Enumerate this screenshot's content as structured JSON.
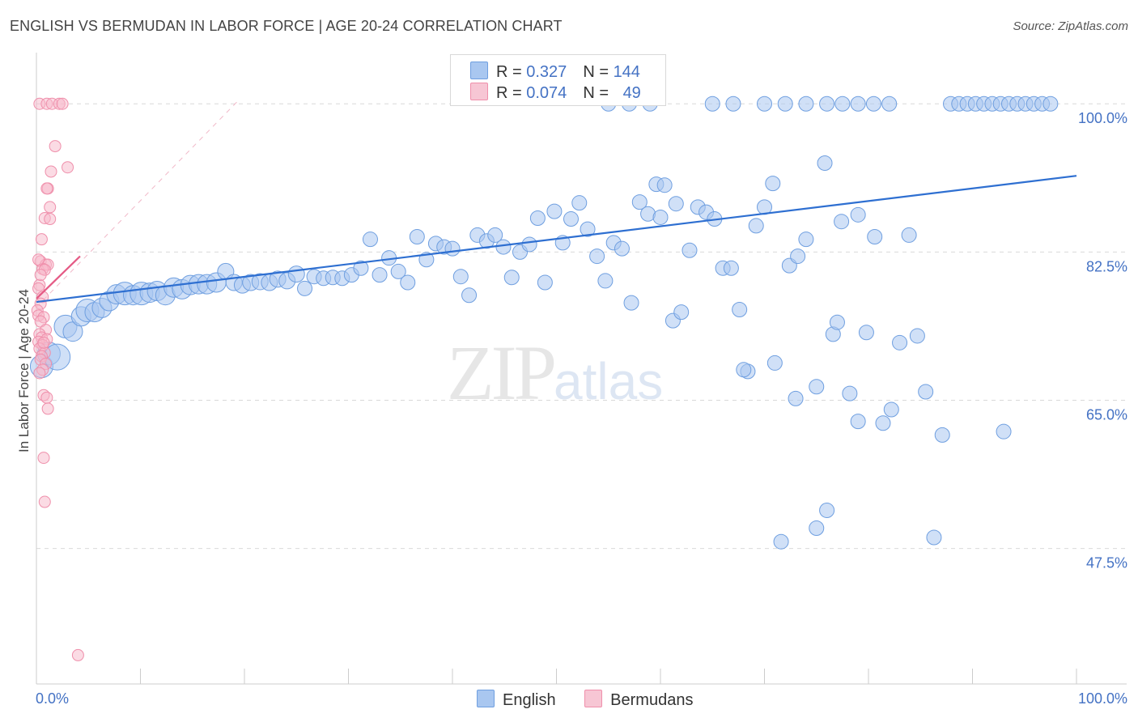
{
  "title": "ENGLISH VS BERMUDAN IN LABOR FORCE | AGE 20-24 CORRELATION CHART",
  "source": "Source: ZipAtlas.com",
  "watermark": {
    "zip": "ZIP",
    "atlas": "atlas"
  },
  "legend": {
    "rows": [
      {
        "r_label": "R = ",
        "r_value": "0.327",
        "n_label": "N = ",
        "n_value": "144"
      },
      {
        "r_label": "R = ",
        "r_value": "0.074",
        "n_label": "N = ",
        "n_value": "49"
      }
    ]
  },
  "bottom_legend": {
    "english": "English",
    "bermudans": "Bermudans"
  },
  "colors": {
    "english_fill": "#a9c7f0",
    "english_stroke": "#6f9fe0",
    "english_line": "#2e6fd1",
    "bermudan_fill": "#f7b8ca",
    "bermudan_stroke": "#ef8fab",
    "bermudan_line": "#e55a85",
    "axis_text": "#4472c4",
    "grid": "#d9d9d9"
  },
  "chart_data": {
    "type": "scatter",
    "title": "ENGLISH VS BERMUDAN IN LABOR FORCE | AGE 20-24 CORRELATION CHART",
    "xlabel": "",
    "ylabel": "In Labor Force | Age 20-24",
    "xlim": [
      0,
      100
    ],
    "ylim": [
      31.5,
      107
    ],
    "x_tick_labels": {
      "left": "0.0%",
      "right": "100.0%"
    },
    "y_ticks": [
      {
        "value": 100.0,
        "label": "100.0%"
      },
      {
        "value": 82.5,
        "label": "82.5%"
      },
      {
        "value": 65.0,
        "label": "65.0%"
      },
      {
        "value": 47.5,
        "label": "47.5%"
      }
    ],
    "series": [
      {
        "name": "English",
        "r": 0.327,
        "n": 144,
        "trend": {
          "x0": 0,
          "y0": 76.6,
          "x1": 100,
          "y1": 91.5
        },
        "points": [
          [
            0.5,
            69.0,
            14
          ],
          [
            1.2,
            70.5,
            14
          ],
          [
            2.0,
            70.1,
            16
          ],
          [
            2.8,
            73.7,
            14
          ],
          [
            3.5,
            73.1,
            12
          ],
          [
            4.3,
            74.9,
            12
          ],
          [
            4.9,
            75.6,
            14
          ],
          [
            5.6,
            75.4,
            12
          ],
          [
            6.3,
            75.9,
            12
          ],
          [
            7.0,
            76.7,
            12
          ],
          [
            7.7,
            77.5,
            12
          ],
          [
            8.5,
            77.6,
            14
          ],
          [
            9.3,
            77.4,
            12
          ],
          [
            10.1,
            77.6,
            14
          ],
          [
            10.9,
            77.7,
            12
          ],
          [
            11.6,
            77.9,
            12
          ],
          [
            12.4,
            77.4,
            12
          ],
          [
            13.2,
            78.3,
            12
          ],
          [
            14.0,
            78.1,
            12
          ],
          [
            14.8,
            78.6,
            12
          ],
          [
            15.6,
            78.7,
            12
          ],
          [
            16.4,
            78.7,
            12
          ],
          [
            17.3,
            78.9,
            12
          ],
          [
            18.2,
            80.2,
            10
          ],
          [
            19.0,
            78.9,
            10
          ],
          [
            19.8,
            78.6,
            10
          ],
          [
            20.6,
            78.9,
            10
          ],
          [
            21.5,
            79.0,
            10
          ],
          [
            22.4,
            78.9,
            10
          ],
          [
            23.2,
            79.3,
            10
          ],
          [
            24.1,
            79.1,
            10
          ],
          [
            25.0,
            79.9,
            10
          ],
          [
            25.8,
            78.2,
            9
          ],
          [
            26.7,
            79.6,
            9
          ],
          [
            27.6,
            79.4,
            9
          ],
          [
            28.5,
            79.5,
            9
          ],
          [
            29.4,
            79.4,
            9
          ],
          [
            30.3,
            79.8,
            9
          ],
          [
            31.2,
            80.6,
            9
          ],
          [
            32.1,
            84.0,
            9
          ],
          [
            33.0,
            79.8,
            9
          ],
          [
            33.9,
            81.8,
            9
          ],
          [
            34.8,
            80.2,
            9
          ],
          [
            35.7,
            78.9,
            9
          ],
          [
            36.6,
            84.3,
            9
          ],
          [
            37.5,
            81.6,
            9
          ],
          [
            38.4,
            83.5,
            9
          ],
          [
            39.2,
            83.1,
            9
          ],
          [
            40.0,
            82.9,
            9
          ],
          [
            40.8,
            79.6,
            9
          ],
          [
            41.6,
            77.4,
            9
          ],
          [
            42.4,
            84.5,
            9
          ],
          [
            43.3,
            83.8,
            9
          ],
          [
            44.1,
            84.5,
            9
          ],
          [
            44.9,
            83.1,
            9
          ],
          [
            45.7,
            79.5,
            9
          ],
          [
            46.5,
            82.5,
            9
          ],
          [
            47.4,
            83.4,
            9
          ],
          [
            48.2,
            86.5,
            9
          ],
          [
            48.9,
            78.9,
            9
          ],
          [
            49.8,
            87.3,
            9
          ],
          [
            50.6,
            83.6,
            9
          ],
          [
            51.4,
            86.4,
            9
          ],
          [
            52.2,
            88.3,
            9
          ],
          [
            53.0,
            85.2,
            9
          ],
          [
            53.9,
            82.0,
            9
          ],
          [
            54.7,
            79.1,
            9
          ],
          [
            55.5,
            83.6,
            9
          ],
          [
            56.3,
            82.9,
            9
          ],
          [
            57.2,
            76.5,
            9
          ],
          [
            58.0,
            88.4,
            9
          ],
          [
            58.8,
            87.0,
            9
          ],
          [
            59.6,
            90.5,
            9
          ],
          [
            60.4,
            90.4,
            9
          ],
          [
            61.2,
            74.4,
            9
          ],
          [
            62.0,
            75.4,
            9
          ],
          [
            62.8,
            82.7,
            9
          ],
          [
            63.6,
            87.8,
            9
          ],
          [
            64.4,
            87.2,
            9
          ],
          [
            65.2,
            86.4,
            9
          ],
          [
            66.0,
            80.6,
            9
          ],
          [
            66.8,
            80.6,
            9
          ],
          [
            67.6,
            75.7,
            9
          ],
          [
            68.4,
            68.4,
            9
          ],
          [
            69.2,
            85.6,
            9
          ],
          [
            70.0,
            87.8,
            9
          ],
          [
            70.8,
            90.6,
            9
          ],
          [
            71.6,
            48.3,
            9
          ],
          [
            72.4,
            80.9,
            9
          ],
          [
            73.2,
            82.0,
            9
          ],
          [
            74.0,
            84.0,
            9
          ],
          [
            75.0,
            49.9,
            9
          ],
          [
            75.8,
            93.0,
            9
          ],
          [
            76.6,
            72.8,
            9
          ],
          [
            77.4,
            86.1,
            9
          ],
          [
            78.2,
            65.8,
            9
          ],
          [
            79.0,
            86.9,
            9
          ],
          [
            79.8,
            73.0,
            9
          ],
          [
            80.6,
            84.3,
            9
          ],
          [
            81.4,
            62.3,
            9
          ],
          [
            82.2,
            63.9,
            9
          ],
          [
            83.0,
            71.8,
            9
          ],
          [
            83.9,
            84.5,
            9
          ],
          [
            84.7,
            72.6,
            9
          ],
          [
            85.5,
            66.0,
            9
          ],
          [
            86.3,
            48.8,
            9
          ],
          [
            87.1,
            60.9,
            9
          ],
          [
            87.9,
            100.0,
            9
          ],
          [
            88.7,
            100.0,
            9
          ],
          [
            89.5,
            100.0,
            9
          ],
          [
            90.3,
            100.0,
            9
          ],
          [
            91.1,
            100.0,
            9
          ],
          [
            91.9,
            100.0,
            9
          ],
          [
            92.7,
            100.0,
            9
          ],
          [
            93.5,
            100.0,
            9
          ],
          [
            94.3,
            100.0,
            9
          ],
          [
            95.1,
            100.0,
            9
          ],
          [
            95.9,
            100.0,
            9
          ],
          [
            96.7,
            100.0,
            9
          ],
          [
            97.5,
            100.0,
            9
          ],
          [
            55.0,
            100.0,
            9
          ],
          [
            57.0,
            100.0,
            9
          ],
          [
            59.0,
            100.0,
            9
          ],
          [
            65.0,
            100.0,
            9
          ],
          [
            67.0,
            100.0,
            9
          ],
          [
            70.0,
            100.0,
            9
          ],
          [
            72.0,
            100.0,
            9
          ],
          [
            74.0,
            100.0,
            9
          ],
          [
            76.0,
            100.0,
            9
          ],
          [
            77.5,
            100.0,
            9
          ],
          [
            79.0,
            100.0,
            9
          ],
          [
            80.5,
            100.0,
            9
          ],
          [
            82.0,
            100.0,
            9
          ],
          [
            68.0,
            68.6,
            9
          ],
          [
            71.0,
            69.4,
            9
          ],
          [
            73.0,
            65.2,
            9
          ],
          [
            75.0,
            66.6,
            9
          ],
          [
            77.0,
            74.2,
            9
          ],
          [
            79.0,
            62.5,
            9
          ],
          [
            93.0,
            61.3,
            9
          ],
          [
            76.0,
            52.0,
            9
          ],
          [
            61.5,
            88.2,
            9
          ],
          [
            60.0,
            86.6,
            9
          ]
        ]
      },
      {
        "name": "Bermudans",
        "r": 0.074,
        "n": 49,
        "trend": {
          "x0": 0,
          "y0": 77.0,
          "x1": 4.2,
          "y1": 82.0
        },
        "points": [
          [
            0.3,
            100.0,
            7
          ],
          [
            1.0,
            100.0,
            7
          ],
          [
            1.5,
            100.0,
            7
          ],
          [
            2.2,
            100.0,
            7
          ],
          [
            2.5,
            100.0,
            7
          ],
          [
            1.8,
            95.0,
            7
          ],
          [
            3.0,
            92.5,
            7
          ],
          [
            1.4,
            92.0,
            7
          ],
          [
            1.1,
            90.0,
            7
          ],
          [
            1.0,
            90.0,
            7
          ],
          [
            1.3,
            87.8,
            7
          ],
          [
            0.8,
            86.5,
            7
          ],
          [
            1.3,
            86.4,
            7
          ],
          [
            0.5,
            84.0,
            7
          ],
          [
            0.4,
            81.4,
            7
          ],
          [
            0.9,
            81.0,
            7
          ],
          [
            1.1,
            81.0,
            7
          ],
          [
            0.6,
            80.5,
            7
          ],
          [
            0.8,
            80.4,
            7
          ],
          [
            0.3,
            78.6,
            7
          ],
          [
            0.2,
            78.2,
            7
          ],
          [
            0.6,
            77.2,
            7
          ],
          [
            0.4,
            76.4,
            7
          ],
          [
            0.1,
            75.6,
            7
          ],
          [
            0.2,
            75.0,
            7
          ],
          [
            0.7,
            74.8,
            7
          ],
          [
            0.4,
            74.3,
            7
          ],
          [
            0.9,
            73.3,
            7
          ],
          [
            0.3,
            72.8,
            7
          ],
          [
            0.5,
            72.4,
            7
          ],
          [
            1.0,
            72.2,
            7
          ],
          [
            0.2,
            71.9,
            7
          ],
          [
            0.6,
            71.5,
            7
          ],
          [
            0.3,
            71.1,
            7
          ],
          [
            0.8,
            70.6,
            7
          ],
          [
            0.5,
            70.2,
            7
          ],
          [
            0.4,
            69.8,
            7
          ],
          [
            0.9,
            69.3,
            7
          ],
          [
            0.6,
            68.6,
            7
          ],
          [
            0.3,
            68.2,
            7
          ],
          [
            0.7,
            65.6,
            7
          ],
          [
            1.0,
            65.3,
            7
          ],
          [
            1.1,
            64.0,
            7
          ],
          [
            0.7,
            58.2,
            7
          ],
          [
            0.8,
            53.0,
            7
          ],
          [
            4.0,
            34.9,
            7
          ],
          [
            0.2,
            81.6,
            7
          ],
          [
            0.4,
            79.8,
            7
          ],
          [
            0.7,
            71.8,
            7
          ]
        ]
      }
    ]
  }
}
